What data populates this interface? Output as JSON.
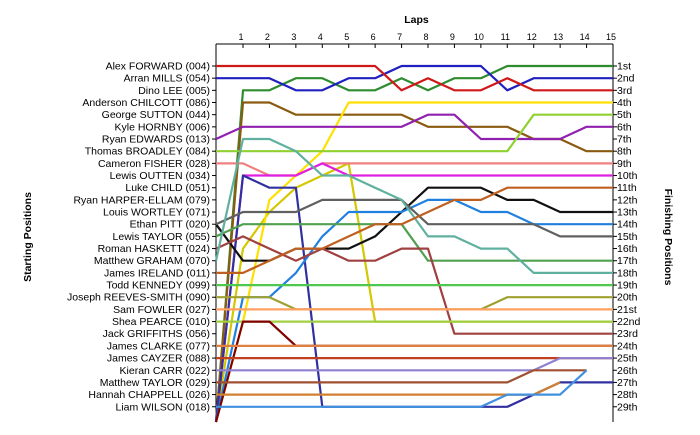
{
  "chart_data": {
    "type": "line",
    "x_axis_title": "Laps",
    "left_axis_title": "Starting Positions",
    "right_axis_title": "Finishing Positions",
    "x_ticks": [
      1,
      2,
      3,
      4,
      5,
      6,
      7,
      8,
      9,
      10,
      11,
      12,
      13,
      14,
      15
    ],
    "starting_grid": [
      "Alex FORWARD (004)",
      "Arran MILLS (054)",
      "Dino LEE (005)",
      "Anderson CHILCOTT (086)",
      "George SUTTON (044)",
      "Kyle HORNBY (006)",
      "Ryan EDWARDS (013)",
      "Thomas BROADLEY (084)",
      "Cameron FISHER (028)",
      "Lewis OUTTEN (034)",
      "Luke CHILD (051)",
      "Ryan HARPER-ELLAM (079)",
      "Louis WORTLEY (071)",
      "Ethan PITT (020)",
      "Lewis TAYLOR (055)",
      "Roman HASKETT (024)",
      "Matthew GRAHAM (070)",
      "James IRELAND (011)",
      "Todd KENNEDY (099)",
      "Joseph REEVES-SMITH (090)",
      "Sam FOWLER (027)",
      "Shea PEARCE (010)",
      "Jack GRIFFITHS (056)",
      "James CLARKE (077)",
      "James CAYZER (088)",
      "Kieran CARR (022)",
      "Matthew TAYLOR (029)",
      "Hannah CHAPPELL (026)",
      "Liam WILSON (018)"
    ],
    "finishing_positions": [
      "1st",
      "2nd",
      "3rd",
      "4th",
      "5th",
      "6th",
      "7th",
      "8th",
      "9th",
      "10th",
      "11th",
      "12th",
      "13th",
      "14th",
      "15th",
      "16th",
      "17th",
      "18th",
      "19th",
      "20th",
      "21st",
      "22nd",
      "23rd",
      "24th",
      "25th",
      "26th",
      "27th",
      "28th",
      "29th"
    ],
    "series": [
      {
        "color": "#2e8b2e",
        "positions": [
          30,
          3,
          3,
          2,
          2,
          3,
          3,
          2,
          3,
          2,
          2,
          1,
          1,
          1,
          1,
          1
        ]
      },
      {
        "color": "#2020c0",
        "positions": [
          2,
          2,
          2,
          3,
          3,
          2,
          2,
          1,
          1,
          1,
          1,
          3,
          2,
          2,
          2,
          2
        ]
      },
      {
        "color": "#d01818",
        "positions": [
          1,
          1,
          1,
          1,
          1,
          1,
          1,
          3,
          2,
          3,
          3,
          2,
          3,
          3,
          3,
          3
        ]
      },
      {
        "color": "#d4c800",
        "positions": [
          30,
          16,
          13,
          11,
          10,
          9,
          22,
          22,
          22,
          22,
          22,
          22,
          22,
          22,
          22,
          22
        ]
      },
      {
        "color": "#8a5a10",
        "positions": [
          30,
          4,
          4,
          5,
          5,
          5,
          5,
          5,
          6,
          6,
          6,
          6,
          7,
          7,
          8,
          8
        ]
      },
      {
        "color": "#ffe000",
        "positions": [
          30,
          22,
          12,
          10,
          8,
          4,
          4,
          4,
          4,
          4,
          4,
          4,
          4,
          4,
          4,
          4
        ]
      },
      {
        "color": "#9020b0",
        "positions": [
          7,
          6,
          6,
          6,
          6,
          6,
          6,
          6,
          5,
          5,
          7,
          7,
          7,
          7,
          6,
          6
        ]
      },
      {
        "color": "#90d030",
        "positions": [
          8,
          8,
          8,
          8,
          8,
          8,
          8,
          8,
          8,
          8,
          8,
          8,
          5,
          5,
          5,
          5
        ]
      },
      {
        "color": "#f08080",
        "positions": [
          9,
          9,
          10,
          10,
          9,
          9,
          9,
          9,
          9,
          9,
          9,
          9,
          9,
          9,
          9,
          9
        ]
      },
      {
        "color": "#e020e0",
        "positions": [
          30,
          10,
          10,
          10,
          9,
          10,
          10,
          10,
          10,
          10,
          10,
          10,
          10,
          10,
          10,
          10
        ]
      },
      {
        "color": "#3030a0",
        "positions": [
          30,
          10,
          11,
          11,
          29,
          29,
          29,
          29,
          29,
          29,
          29,
          29,
          28,
          27,
          27,
          27
        ]
      },
      {
        "color": "#101010",
        "positions": [
          14,
          17,
          17,
          16,
          16,
          16,
          15,
          13,
          11,
          11,
          11,
          12,
          12,
          13,
          13,
          13
        ]
      },
      {
        "color": "#2080e0",
        "positions": [
          30,
          20,
          20,
          18,
          15,
          13,
          13,
          13,
          12,
          12,
          13,
          13,
          14,
          14,
          14,
          14
        ]
      },
      {
        "color": "#606060",
        "positions": [
          14,
          13,
          13,
          13,
          12,
          12,
          12,
          12,
          14,
          14,
          14,
          14,
          14,
          15,
          15,
          15
        ]
      },
      {
        "color": "#50a050",
        "positions": [
          15,
          14,
          14,
          14,
          14,
          14,
          14,
          14,
          17,
          17,
          17,
          17,
          17,
          17,
          17,
          17
        ]
      },
      {
        "color": "#a04040",
        "positions": [
          16,
          15,
          16,
          17,
          16,
          17,
          17,
          16,
          16,
          23,
          23,
          23,
          23,
          23,
          23,
          23
        ]
      },
      {
        "color": "#60b0a0",
        "positions": [
          17,
          7,
          7,
          8,
          10,
          10,
          11,
          12,
          15,
          15,
          16,
          16,
          18,
          18,
          18,
          18
        ]
      },
      {
        "color": "#c06020",
        "positions": [
          18,
          18,
          17,
          16,
          16,
          15,
          14,
          14,
          13,
          12,
          12,
          11,
          11,
          11,
          11,
          11
        ]
      },
      {
        "color": "#50c850",
        "positions": [
          19,
          19,
          19,
          19,
          19,
          19,
          19,
          19,
          19,
          19,
          19,
          19,
          19,
          19,
          19,
          19
        ]
      },
      {
        "color": "#a0a030",
        "positions": [
          20,
          20,
          20,
          21,
          21,
          21,
          21,
          21,
          21,
          21,
          21,
          20,
          20,
          20,
          20,
          20
        ]
      },
      {
        "color": "#ffa060",
        "positions": [
          21,
          21,
          21,
          21,
          21,
          21,
          21,
          21,
          21,
          21,
          21,
          21,
          21,
          21,
          21,
          21
        ]
      },
      {
        "color": "#a0d040",
        "positions": [
          22,
          22,
          22,
          22,
          22,
          22,
          22,
          22,
          22,
          22,
          22,
          22,
          22,
          22,
          22,
          22
        ]
      },
      {
        "color": "#800000",
        "positions": [
          30,
          22,
          22,
          24,
          24,
          24,
          24,
          24,
          24,
          24,
          24,
          24,
          24,
          24,
          24,
          24
        ]
      },
      {
        "color": "#e08040",
        "positions": [
          24,
          24,
          24,
          24,
          24,
          24,
          24,
          24,
          24,
          24,
          24,
          24,
          24,
          24,
          24,
          24
        ]
      },
      {
        "color": "#c04020",
        "positions": [
          25,
          25,
          25,
          25,
          25,
          25,
          25,
          25,
          25,
          25,
          25,
          25,
          25,
          25,
          25,
          25
        ]
      },
      {
        "color": "#9080d0",
        "positions": [
          26,
          26,
          26,
          26,
          26,
          26,
          26,
          26,
          26,
          26,
          26,
          26,
          26,
          25,
          25,
          25
        ]
      },
      {
        "color": "#a05030",
        "positions": [
          27,
          27,
          27,
          27,
          27,
          27,
          27,
          27,
          27,
          27,
          27,
          27,
          26,
          26,
          26
        ]
      },
      {
        "color": "#d08030",
        "positions": [
          28,
          28,
          28,
          28,
          28,
          28,
          28,
          28,
          28,
          28,
          28,
          28,
          28,
          27
        ]
      },
      {
        "color": "#4090e0",
        "positions": [
          29,
          29,
          29,
          29,
          29,
          29,
          29,
          29,
          29,
          29,
          29,
          28,
          28,
          28,
          26
        ]
      }
    ]
  }
}
